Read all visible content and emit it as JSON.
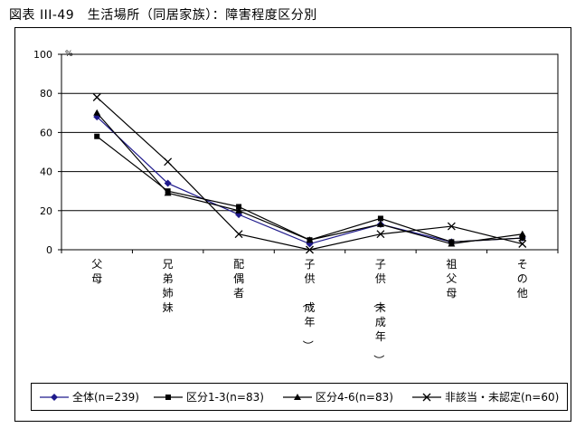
{
  "title": "図表 III-49　生活場所（同居家族）：障害程度区分別",
  "chart_data": {
    "type": "line",
    "unit_label": "%",
    "ylim": [
      0,
      100
    ],
    "yticks": [
      0,
      20,
      40,
      60,
      80,
      100
    ],
    "grid": true,
    "legend_position": "bottom",
    "categories": [
      "父母",
      "兄弟姉妹",
      "配偶者",
      "子供（成年）",
      "子供（未成年）",
      "祖父母",
      "その他"
    ],
    "series": [
      {
        "name": "全体(n=239)",
        "marker": "diamond",
        "color": "#1f1a8c",
        "values": [
          68,
          34,
          18,
          3,
          13,
          4,
          6
        ]
      },
      {
        "name": "区分1-3(n=83)",
        "marker": "square",
        "color": "#000000",
        "values": [
          58,
          30,
          22,
          5,
          16,
          4,
          6
        ]
      },
      {
        "name": "区分4-6(n=83)",
        "marker": "triangle",
        "color": "#000000",
        "values": [
          70,
          29,
          20,
          5,
          13,
          3,
          8
        ]
      },
      {
        "name": "非該当・未認定(n=60)",
        "marker": "cross",
        "color": "#000000",
        "values": [
          78,
          45,
          8,
          0,
          8,
          12,
          3
        ]
      }
    ]
  }
}
